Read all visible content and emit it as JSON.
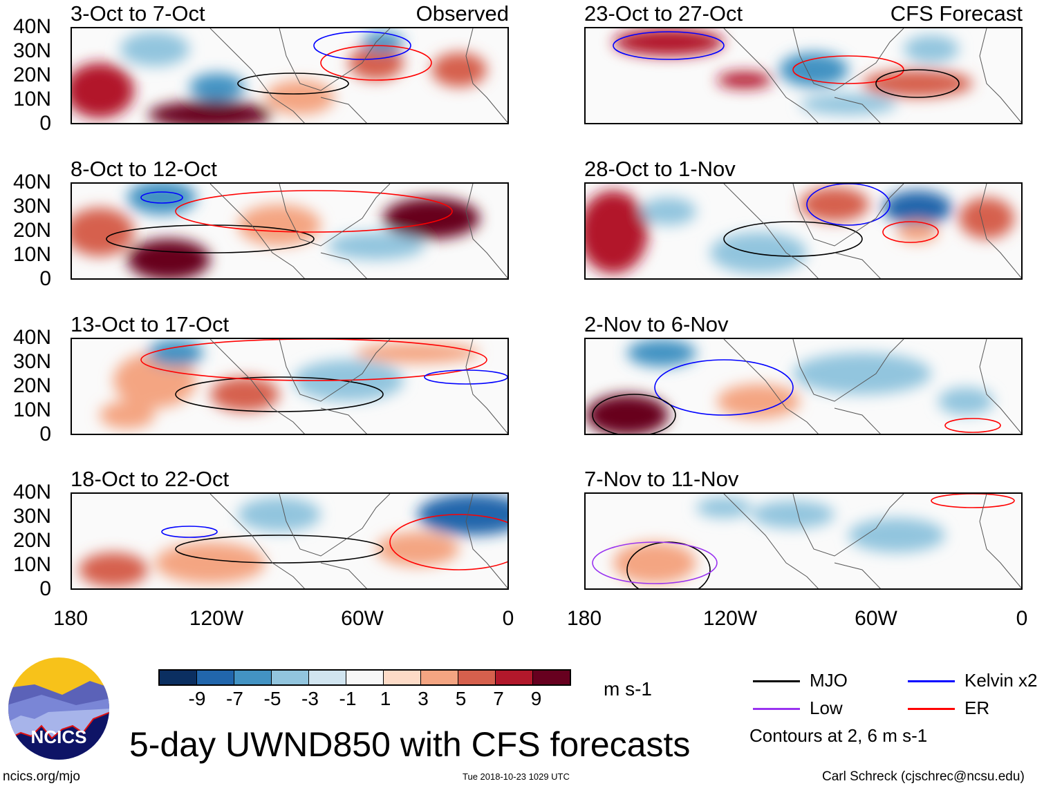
{
  "panels": [
    {
      "title": "3-Oct to 7-Oct",
      "label": "Observed"
    },
    {
      "title": "23-Oct to 27-Oct",
      "label": "CFS Forecast"
    },
    {
      "title": "8-Oct to 12-Oct"
    },
    {
      "title": "28-Oct to 1-Nov"
    },
    {
      "title": "13-Oct to 17-Oct"
    },
    {
      "title": "2-Nov to 6-Nov"
    },
    {
      "title": "18-Oct to 22-Oct"
    },
    {
      "title": "7-Nov to 11-Nov"
    }
  ],
  "lat_labels": [
    "40N",
    "30N",
    "20N",
    "10N",
    "0"
  ],
  "lon_labels": [
    "180",
    "120W",
    "60W",
    "0"
  ],
  "colorbar": {
    "colors": [
      "#0b2f61",
      "#2166ac",
      "#4393c3",
      "#92c5de",
      "#d1e5f0",
      "#f7f7f7",
      "#fddbc7",
      "#f4a582",
      "#d6604d",
      "#b2182b",
      "#67001f"
    ],
    "labels": [
      "-9",
      "-7",
      "-5",
      "-3",
      "-1",
      "1",
      "3",
      "5",
      "7",
      "9"
    ],
    "units": "m s-1"
  },
  "legend": {
    "items": [
      {
        "label": "MJO",
        "color": "#000000"
      },
      {
        "label": "Kelvin x2",
        "color": "#0000ff"
      },
      {
        "label": "Low",
        "color": "#9932f0"
      },
      {
        "label": "ER",
        "color": "#ff0000"
      }
    ],
    "note": "Contours at 2, 6 m s-1"
  },
  "title": "5-day UWND850 with CFS forecasts",
  "logo_text": "NCICS",
  "url": "ncics.org/mjo",
  "timestamp": "Tue 2018-10-23 1029 UTC",
  "credit": "Carl Schreck (cjschrec@ncsu.edu)"
}
